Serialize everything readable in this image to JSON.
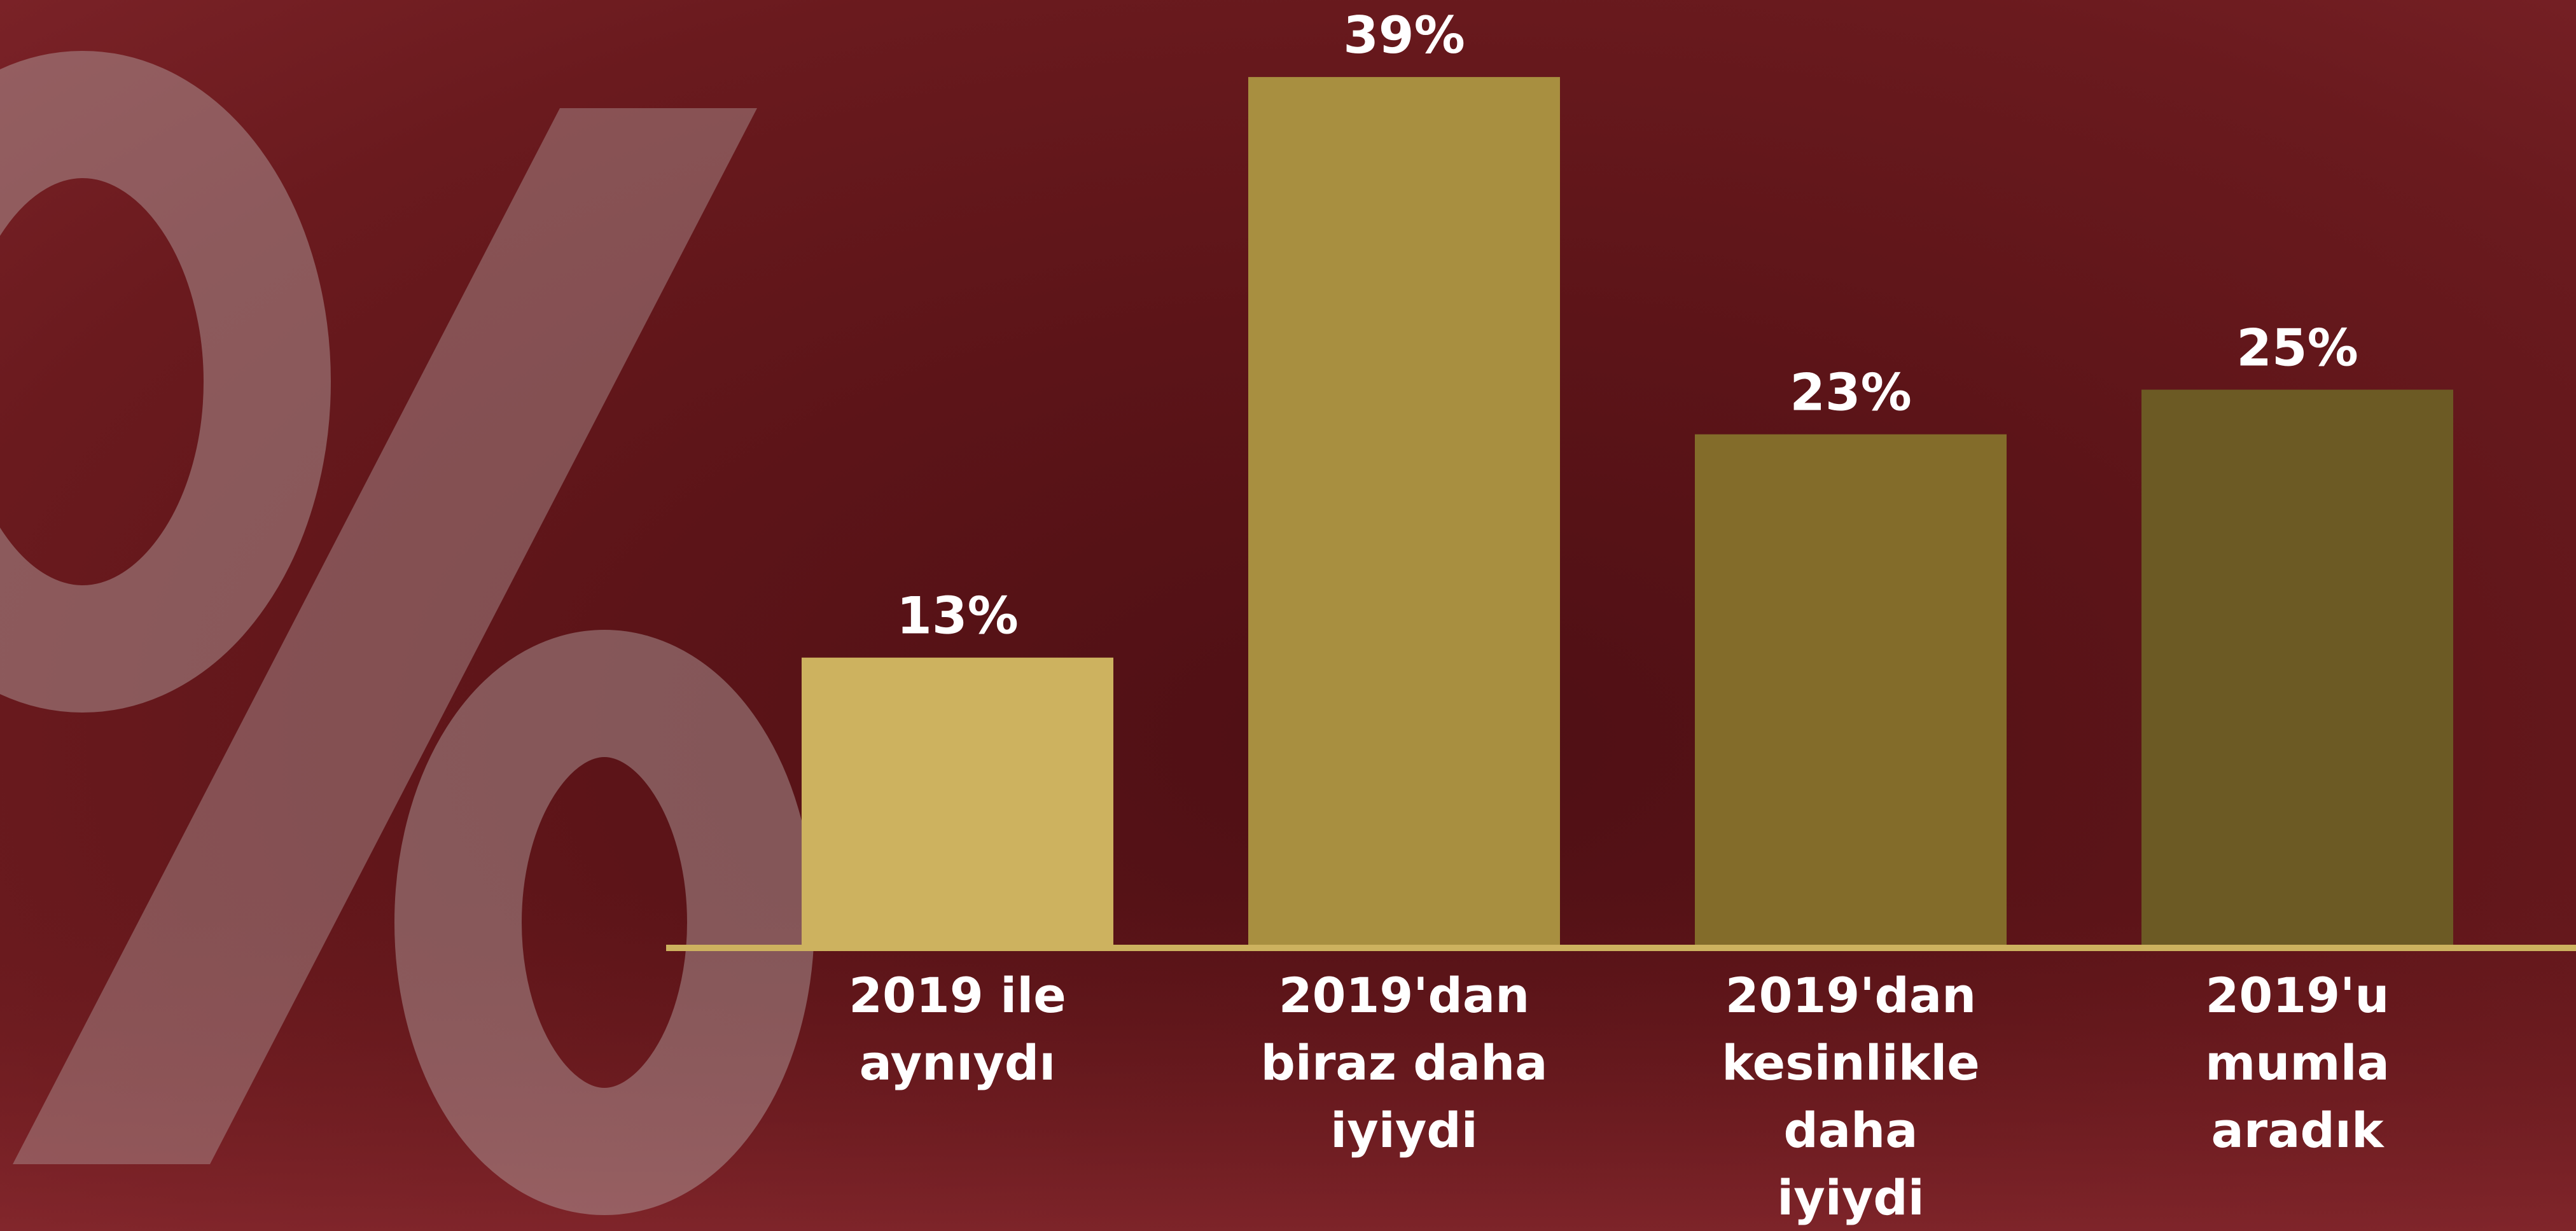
{
  "chart_data": {
    "type": "bar",
    "categories": [
      "2019 ile aynıydı",
      "2019'dan biraz daha iyiydi",
      "2019'dan kesinlikle daha iyiydi",
      "2019'u mumla aradık"
    ],
    "values": [
      13,
      39,
      23,
      25
    ],
    "value_labels": [
      "13%",
      "39%",
      "23%",
      "25%"
    ],
    "colors": [
      "#cdb25f",
      "#a88f40",
      "#836c2a",
      "#6c5a24"
    ],
    "axis_color": "#cdb25f",
    "ylim": [
      0,
      40
    ]
  }
}
